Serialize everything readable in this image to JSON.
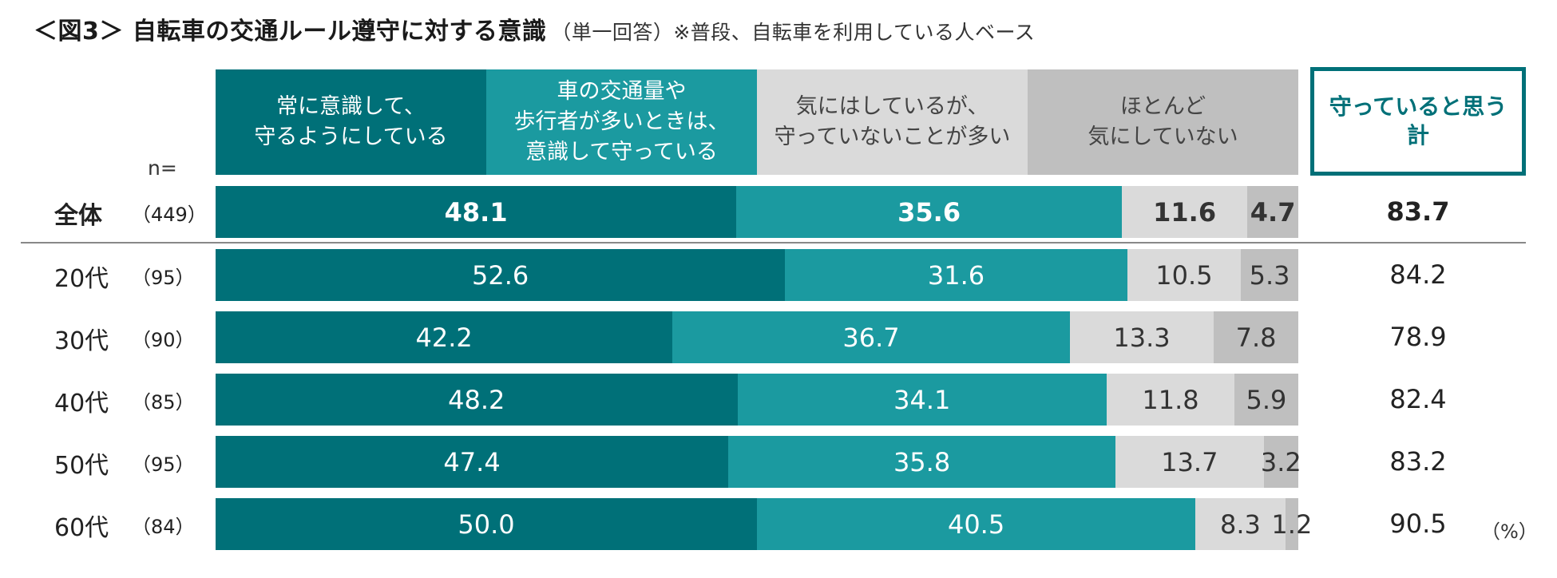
{
  "chart_data": {
    "type": "bar",
    "orientation": "horizontal",
    "stacked": true,
    "title": "＜図3＞ 自転車の交通ルール遵守に対する意識",
    "subtitle": "（単一回答）",
    "note": "※普段、自転車を利用している人ベース",
    "n_label": "n=",
    "unit": "（%）",
    "xlim": [
      0,
      100
    ],
    "series": [
      {
        "name": "常に意識して、\n守るようにしている",
        "color": "#007078",
        "text_color": "#ffffff",
        "values": [
          48.1,
          52.6,
          42.2,
          48.2,
          47.4,
          50.0
        ]
      },
      {
        "name": "車の交通量や\n歩行者が多いときは、\n意識して守っている",
        "color": "#1b9aa0",
        "text_color": "#ffffff",
        "values": [
          35.6,
          31.6,
          36.7,
          34.1,
          35.8,
          40.5
        ]
      },
      {
        "name": "気にはしているが、\n守っていないことが多い",
        "color": "#dadada",
        "text_color": "#333333",
        "values": [
          11.6,
          10.5,
          13.3,
          11.8,
          13.7,
          8.3
        ]
      },
      {
        "name": "ほとんど\n気にしていない",
        "color": "#bfbfbf",
        "text_color": "#333333",
        "values": [
          4.7,
          5.3,
          7.8,
          5.9,
          3.2,
          1.2
        ]
      }
    ],
    "categories": [
      {
        "label": "全体",
        "n": "（449）"
      },
      {
        "label": "20代",
        "n": "（95）"
      },
      {
        "label": "30代",
        "n": "（90）"
      },
      {
        "label": "40代",
        "n": "（85）"
      },
      {
        "label": "50代",
        "n": "（95）"
      },
      {
        "label": "60代",
        "n": "（84）"
      }
    ],
    "total": {
      "label": "守っていると思う\n計",
      "values": [
        83.7,
        84.2,
        78.9,
        82.4,
        83.2,
        90.5
      ]
    }
  }
}
